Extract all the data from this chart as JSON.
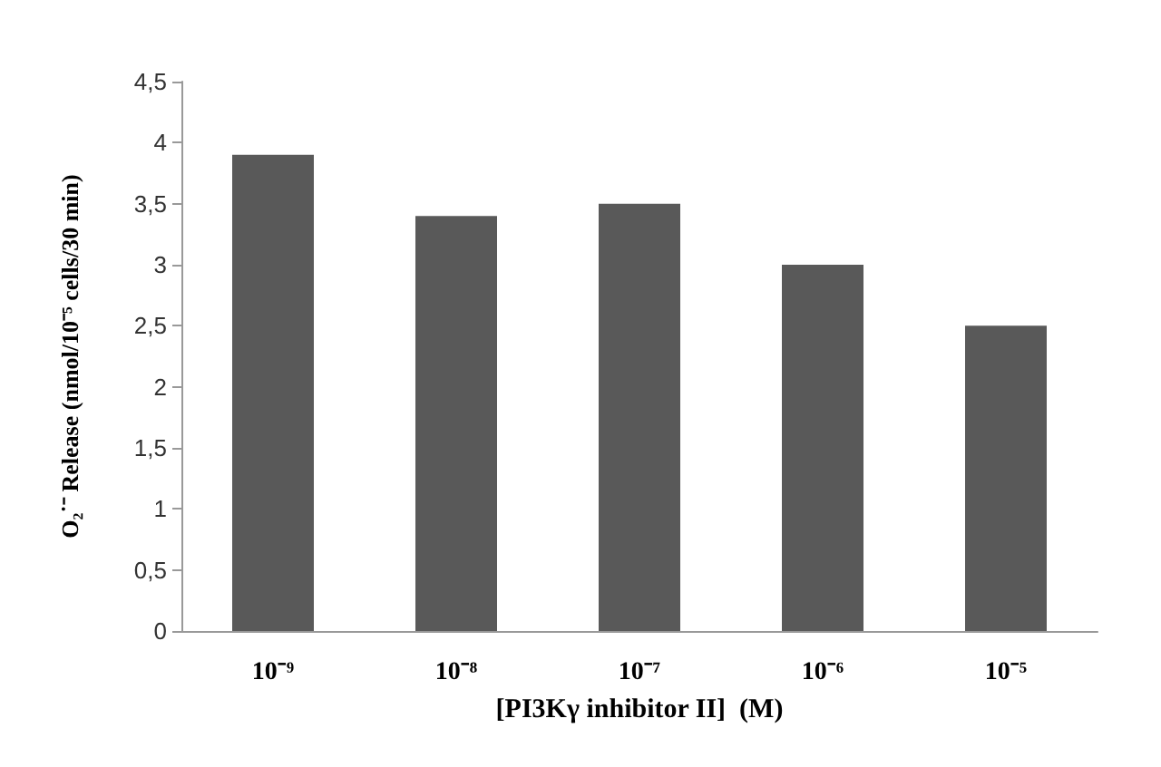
{
  "chart_data": {
    "type": "bar",
    "xlabel": "[PI3Kγ inhibitor II]  (M)",
    "ylabel": "O₂˙⁻ Release (nmol/10⁻⁵ cells/30 min)",
    "categories": [
      "10⁻⁹",
      "10⁻⁸",
      "10⁻⁷",
      "10⁻⁶",
      "10⁻⁵"
    ],
    "values": [
      3.9,
      3.4,
      3.5,
      3.0,
      2.5
    ],
    "color": "#595959",
    "ylim": [
      0,
      4.5
    ],
    "yticks": [
      0,
      {
        "value": 0.5,
        "label": "0,5"
      },
      1,
      {
        "value": 1.5,
        "label": "1,5"
      },
      2,
      {
        "value": 2.5,
        "label": "2,5"
      },
      3,
      {
        "value": 3.5,
        "label": "3,5"
      },
      4,
      {
        "value": 4.5,
        "label": "4,5"
      }
    ],
    "grid": false
  }
}
